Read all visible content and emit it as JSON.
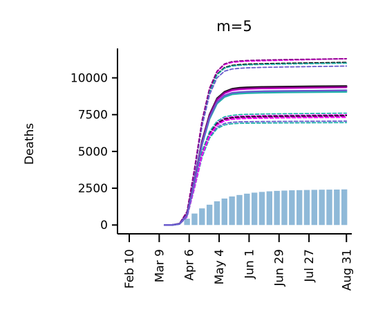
{
  "chart_data": {
    "type": "line",
    "title": "m=5",
    "xlabel": "",
    "ylabel": "Deaths",
    "x_axis": {
      "type": "date",
      "range": [
        "2020-01-30",
        "2020-09-05"
      ],
      "ticks": [
        {
          "date": "2020-02-10",
          "label": "Feb 10"
        },
        {
          "date": "2020-03-09",
          "label": "Mar 9"
        },
        {
          "date": "2020-04-06",
          "label": "Apr 6"
        },
        {
          "date": "2020-05-04",
          "label": "May 4"
        },
        {
          "date": "2020-06-01",
          "label": "Jun 1"
        },
        {
          "date": "2020-06-29",
          "label": "Jun 29"
        },
        {
          "date": "2020-07-27",
          "label": "Jul 27"
        },
        {
          "date": "2020-08-31",
          "label": "Aug 31"
        }
      ]
    },
    "y_axis": {
      "range": [
        -600,
        12000
      ],
      "ticks": [
        0,
        2500,
        5000,
        7500,
        10000
      ],
      "tick_labels": [
        "0",
        "2500",
        "5000",
        "7500",
        "10000"
      ]
    },
    "grid": false,
    "curve_dates": [
      "2020-03-14",
      "2020-03-21",
      "2020-03-28",
      "2020-04-04",
      "2020-04-11",
      "2020-04-18",
      "2020-04-25",
      "2020-05-02",
      "2020-05-09",
      "2020-05-16",
      "2020-05-23",
      "2020-05-30",
      "2020-06-13",
      "2020-07-04",
      "2020-08-01",
      "2020-08-31"
    ],
    "series": [
      {
        "style": "solid",
        "color": "#ff00ff",
        "values": [
          0,
          0,
          80,
          700,
          3000,
          5600,
          7400,
          8500,
          8950,
          9150,
          9220,
          9250,
          9280,
          9300,
          9330,
          9360
        ]
      },
      {
        "style": "solid",
        "color": "#000000",
        "values": [
          0,
          0,
          90,
          720,
          3050,
          5700,
          7500,
          8600,
          9050,
          9250,
          9320,
          9350,
          9380,
          9400,
          9420,
          9440
        ]
      },
      {
        "style": "solid",
        "color": "#8b008b",
        "values": [
          0,
          0,
          85,
          710,
          3020,
          5650,
          7450,
          8550,
          9000,
          9200,
          9260,
          9290,
          9320,
          9340,
          9360,
          9380
        ]
      },
      {
        "style": "solid",
        "color": "#20b2aa",
        "values": [
          0,
          0,
          70,
          660,
          2900,
          5450,
          7200,
          8250,
          8700,
          8880,
          8930,
          8960,
          8990,
          9010,
          9030,
          9050
        ]
      },
      {
        "style": "solid",
        "color": "#6a5acd",
        "values": [
          0,
          0,
          75,
          680,
          2950,
          5500,
          7300,
          8350,
          8800,
          8980,
          9030,
          9060,
          9090,
          9110,
          9130,
          9150
        ]
      },
      {
        "style": "dashed",
        "color": "#ff00ff",
        "values": [
          0,
          0,
          100,
          900,
          3800,
          7000,
          9200,
          10400,
          10900,
          11050,
          11100,
          11130,
          11160,
          11200,
          11250,
          11300
        ]
      },
      {
        "style": "dashed",
        "color": "#000000",
        "values": [
          0,
          0,
          95,
          880,
          3700,
          6900,
          9050,
          10250,
          10700,
          10850,
          10900,
          10930,
          10960,
          10990,
          11020,
          11050
        ]
      },
      {
        "style": "dashed",
        "color": "#20b2aa",
        "values": [
          0,
          0,
          95,
          870,
          3680,
          6850,
          9000,
          10200,
          10650,
          10800,
          10850,
          10880,
          10910,
          10940,
          10970,
          11000
        ]
      },
      {
        "style": "dashed",
        "color": "#6a5acd",
        "values": [
          0,
          0,
          90,
          850,
          3600,
          6700,
          8850,
          10000,
          10450,
          10600,
          10650,
          10680,
          10710,
          10740,
          10770,
          10800
        ]
      },
      {
        "style": "dashed",
        "color": "#8b008b",
        "values": [
          0,
          0,
          105,
          920,
          3850,
          7100,
          9300,
          10450,
          10950,
          11100,
          11150,
          11180,
          11210,
          11240,
          11270,
          11300
        ]
      },
      {
        "style": "dashed",
        "color": "#ff00ff",
        "values": [
          0,
          0,
          70,
          600,
          2700,
          4900,
          6250,
          6950,
          7250,
          7350,
          7390,
          7410,
          7430,
          7450,
          7470,
          7490
        ]
      },
      {
        "style": "dashed",
        "color": "#000000",
        "values": [
          0,
          0,
          68,
          590,
          2650,
          4850,
          6200,
          6900,
          7200,
          7300,
          7340,
          7360,
          7380,
          7400,
          7420,
          7440
        ]
      },
      {
        "style": "dashed",
        "color": "#20b2aa",
        "values": [
          0,
          0,
          72,
          610,
          2750,
          5000,
          6350,
          7050,
          7350,
          7450,
          7500,
          7520,
          7540,
          7560,
          7580,
          7600
        ]
      },
      {
        "style": "dashed",
        "color": "#20b2aa",
        "values": [
          0,
          0,
          60,
          550,
          2500,
          4600,
          5900,
          6550,
          6800,
          6880,
          6910,
          6920,
          6930,
          6940,
          6950,
          6960
        ]
      },
      {
        "style": "dashed",
        "color": "#6a5acd",
        "values": [
          0,
          0,
          62,
          560,
          2550,
          4700,
          6000,
          6650,
          6900,
          6980,
          7010,
          7020,
          7030,
          7040,
          7050,
          7060
        ]
      },
      {
        "style": "dashed",
        "color": "#8b008b",
        "values": [
          0,
          0,
          66,
          580,
          2620,
          4800,
          6150,
          6850,
          7150,
          7250,
          7290,
          7310,
          7330,
          7350,
          7370,
          7390
        ]
      },
      {
        "style": "dashed",
        "color": "#ff00ff",
        "values": [
          0,
          0,
          64,
          570,
          2580,
          4750,
          6080,
          6780,
          7080,
          7180,
          7220,
          7240,
          7260,
          7280,
          7300,
          7320
        ]
      }
    ],
    "bars": {
      "color": "#8fb9d8",
      "dates": [
        "2020-04-04",
        "2020-04-11",
        "2020-04-18",
        "2020-04-25",
        "2020-05-02",
        "2020-05-09",
        "2020-05-16",
        "2020-05-23",
        "2020-05-30",
        "2020-06-06",
        "2020-06-13",
        "2020-06-20",
        "2020-06-27",
        "2020-07-04",
        "2020-07-11",
        "2020-07-18",
        "2020-07-25",
        "2020-08-01",
        "2020-08-08",
        "2020-08-15",
        "2020-08-22",
        "2020-08-29"
      ],
      "values": [
        430,
        780,
        1130,
        1380,
        1610,
        1800,
        1940,
        2040,
        2130,
        2200,
        2250,
        2290,
        2320,
        2340,
        2360,
        2370,
        2380,
        2390,
        2400,
        2405,
        2410,
        2420
      ]
    }
  }
}
